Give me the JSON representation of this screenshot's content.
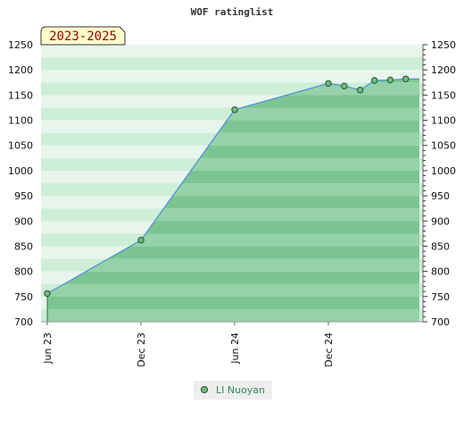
{
  "chart_data": {
    "type": "area",
    "title": "WOF ratinglist",
    "period_label": "2023-2025",
    "xlabel": "",
    "ylabel": "",
    "x_ticks": [
      "Jun 23",
      "Dec 23",
      "Jun 24",
      "Dec 24"
    ],
    "ylim": [
      700,
      1250
    ],
    "y_ticks": [
      700,
      750,
      800,
      850,
      900,
      950,
      1000,
      1050,
      1100,
      1150,
      1200,
      1250
    ],
    "y_axis_both_sides": true,
    "grid": "horizontal bands",
    "legend_position": "bottom-center",
    "series": [
      {
        "name": "LI Nuoyan",
        "color": "#4a90d9",
        "marker_color": "#6abf7b",
        "points": [
          {
            "x": "2023-06-01",
            "y": 756
          },
          {
            "x": "2023-12-01",
            "y": 862
          },
          {
            "x": "2024-06-01",
            "y": 1121
          },
          {
            "x": "2024-12-01",
            "y": 1173
          },
          {
            "x": "2025-01-01",
            "y": 1168
          },
          {
            "x": "2025-02-01",
            "y": 1160
          },
          {
            "x": "2025-03-01",
            "y": 1179
          },
          {
            "x": "2025-04-01",
            "y": 1180
          },
          {
            "x": "2025-05-01",
            "y": 1182
          }
        ]
      }
    ],
    "fill_color": "#7dc795",
    "band_colors": [
      "#e8f5ec",
      "#cdeed7"
    ]
  }
}
